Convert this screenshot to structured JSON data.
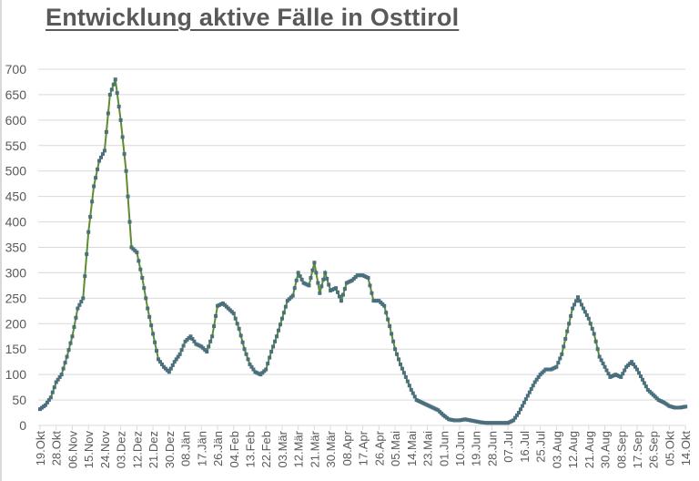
{
  "title": "Entwicklung aktive Fälle in Osttirol",
  "colors": {
    "line": "#5e8c2e",
    "marker": "#4a6f7d",
    "grid": "#d9d9d9",
    "text": "#595959"
  },
  "chart_data": {
    "type": "line",
    "title": "Entwicklung aktive Fälle in Osttirol",
    "xlabel": "",
    "ylabel": "",
    "ylim": [
      0,
      700
    ],
    "yticks": [
      0,
      50,
      100,
      150,
      200,
      250,
      300,
      350,
      400,
      450,
      500,
      550,
      600,
      650,
      700
    ],
    "grid": true,
    "legend": "none",
    "x_tick_labels": [
      "19.Okt",
      "28.Okt",
      "06.Nov",
      "15.Nov",
      "24.Nov",
      "03.Dez",
      "12.Dez",
      "21.Dez",
      "30.Dez",
      "08.Jän",
      "17.Jän",
      "26.Jän",
      "04.Feb",
      "13.Feb",
      "22.Feb",
      "03.Mär",
      "12.Mär",
      "21.Mär",
      "30.Mär",
      "08.Apr",
      "17.Apr",
      "26.Apr",
      "05.Mai",
      "14.Mai",
      "23.Mai",
      "01.Jun",
      "10.Jun",
      "19.Jun",
      "28.Jun",
      "07.Jul",
      "16.Jul",
      "25.Jul",
      "03.Aug",
      "12.Aug",
      "21.Aug",
      "30.Aug",
      "08.Sep",
      "17.Sep",
      "26.Sep",
      "05.Okt",
      "14.Okt"
    ],
    "x_tick_interval_days": 9,
    "sample_interval_days": 3,
    "series": [
      {
        "name": "aktive Fälle",
        "start": "19.Okt",
        "values": [
          32,
          40,
          55,
          85,
          100,
          135,
          175,
          230,
          250,
          380,
          470,
          520,
          540,
          650,
          680,
          600,
          500,
          350,
          340,
          290,
          230,
          180,
          130,
          115,
          105,
          125,
          140,
          165,
          175,
          160,
          155,
          145,
          175,
          235,
          240,
          230,
          220,
          190,
          150,
          120,
          105,
          100,
          110,
          145,
          175,
          210,
          245,
          255,
          300,
          280,
          275,
          320,
          260,
          300,
          265,
          270,
          245,
          280,
          285,
          295,
          295,
          290,
          245,
          245,
          235,
          195,
          150,
          120,
          95,
          70,
          50,
          45,
          40,
          35,
          30,
          20,
          12,
          10,
          10,
          12,
          10,
          8,
          6,
          5,
          5,
          5,
          5,
          5,
          10,
          25,
          45,
          65,
          85,
          100,
          110,
          110,
          115,
          140,
          185,
          230,
          252,
          230,
          210,
          180,
          135,
          115,
          95,
          100,
          95,
          115,
          125,
          110,
          90,
          70,
          60,
          50,
          45,
          38,
          35,
          35,
          37
        ]
      }
    ]
  }
}
